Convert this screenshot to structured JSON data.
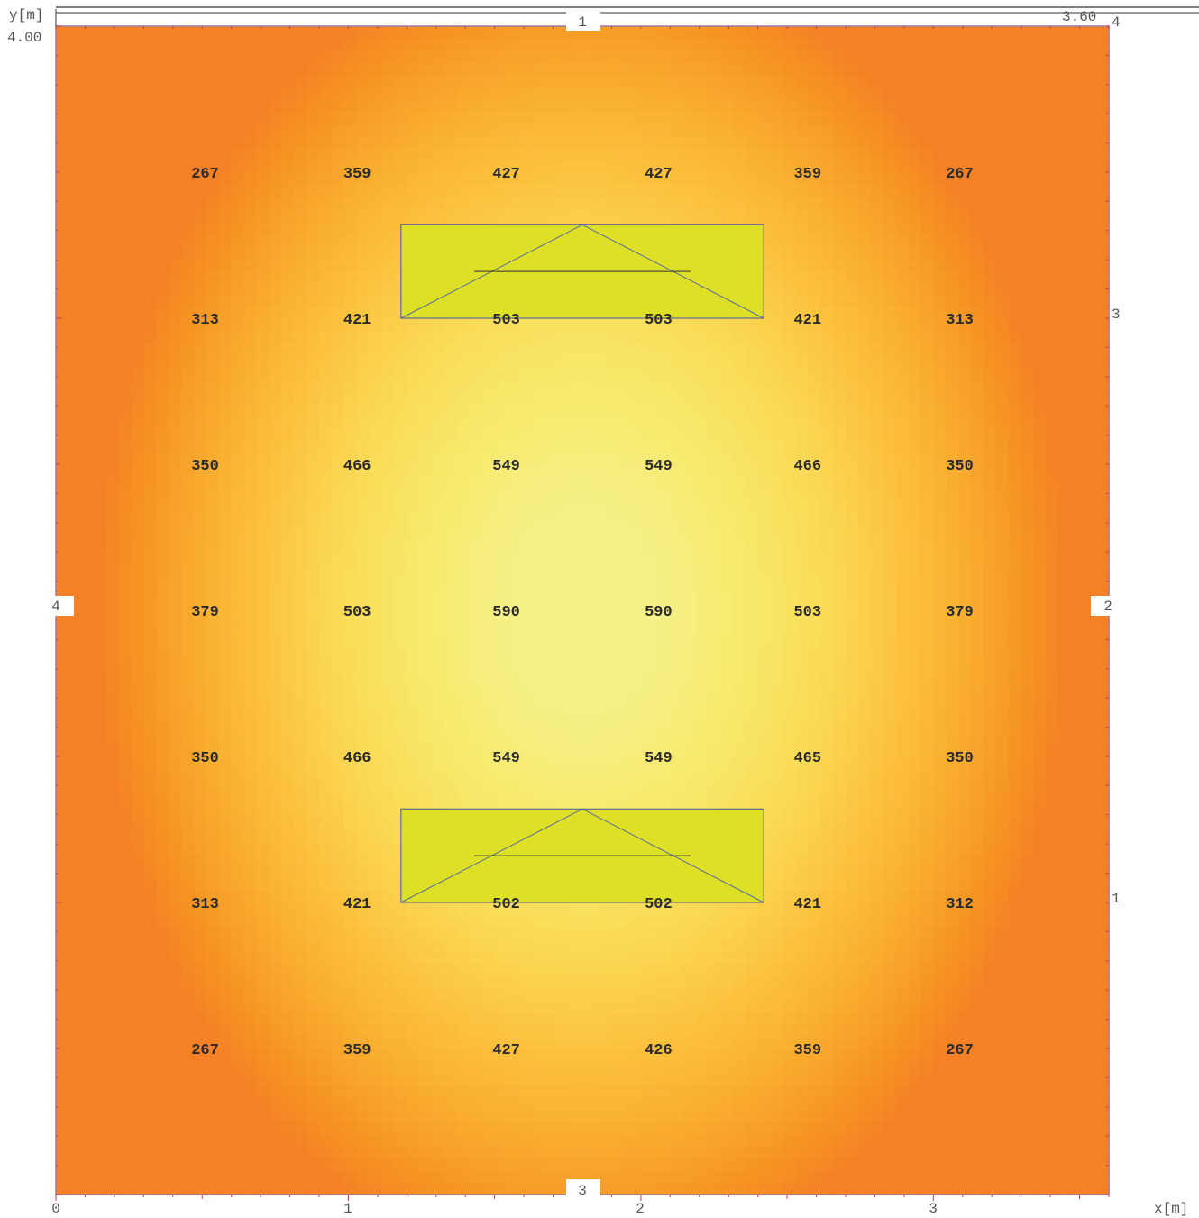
{
  "chart_data": {
    "type": "heatmap",
    "title": "",
    "xlabel": "x[m]",
    "ylabel": "y[m]",
    "xlim": [
      0,
      3.6
    ],
    "ylim": [
      0,
      4.0
    ],
    "x_ticks": [
      "0",
      "1",
      "2",
      "3"
    ],
    "y_top_label": "4.00",
    "x_right_label": "3.60",
    "wall_labels": {
      "top": "1",
      "right": "2",
      "bottom": "3",
      "left": "4",
      "top_right_corner": "4",
      "right_upper": "3",
      "right_lower": "1"
    },
    "grid_x": [
      0.51,
      1.03,
      1.54,
      2.06,
      2.57,
      3.09
    ],
    "grid_y": [
      3.5,
      3.0,
      2.5,
      2.0,
      1.5,
      1.0,
      0.5
    ],
    "values": [
      [
        "267",
        "359",
        "427",
        "427",
        "359",
        "267"
      ],
      [
        "313",
        "421",
        "503",
        "503",
        "421",
        "313"
      ],
      [
        "350",
        "466",
        "549",
        "549",
        "466",
        "350"
      ],
      [
        "379",
        "503",
        "590",
        "590",
        "503",
        "379"
      ],
      [
        "350",
        "466",
        "549",
        "549",
        "465",
        "350"
      ],
      [
        "313",
        "421",
        "502",
        "502",
        "421",
        "312"
      ],
      [
        "267",
        "359",
        "427",
        "426",
        "359",
        "267"
      ]
    ],
    "luminaires": [
      {
        "x": [
          1.18,
          2.42
        ],
        "y": [
          3.0,
          3.32
        ]
      },
      {
        "x": [
          1.18,
          2.42
        ],
        "y": [
          1.0,
          1.32
        ]
      }
    ],
    "colors": {
      "background": "#f58025",
      "luminaire_fill": "#dde024",
      "luminaire_stroke": "#5a6c9a",
      "frame": "#9a7aa8"
    }
  }
}
